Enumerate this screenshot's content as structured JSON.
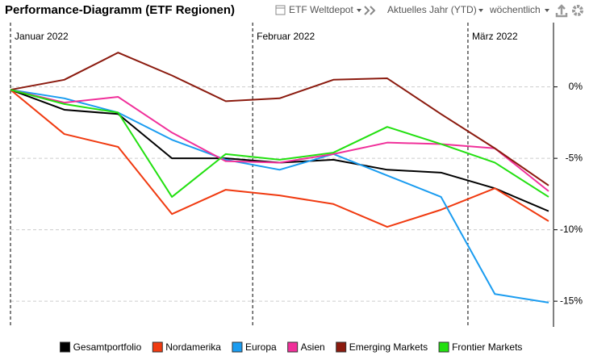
{
  "toolbar": {
    "depot": "ETF Weltdepot",
    "period": "Aktuelles Jahr (YTD)",
    "interval": "wöchentlich"
  },
  "chart_data": {
    "type": "line",
    "title": "Performance-Diagramm (ETF Regionen)",
    "categories": [
      "Januar 2022",
      null,
      null,
      null,
      null,
      "Februar 2022",
      null,
      null,
      null,
      "März 2022",
      null
    ],
    "series": [
      {
        "name": "Gesamtportfolio",
        "color": "#000000",
        "values": [
          -0.2,
          -1.6,
          -1.9,
          -5.0,
          -5.0,
          -5.3,
          -5.1,
          -5.8,
          -6.0,
          -7.1,
          -8.7
        ]
      },
      {
        "name": "Nordamerika",
        "color": "#f03a10",
        "values": [
          -0.2,
          -3.3,
          -4.2,
          -8.9,
          -7.2,
          -7.6,
          -8.2,
          -9.8,
          -8.6,
          -7.1,
          -9.4
        ]
      },
      {
        "name": "Europa",
        "color": "#1a9cf0",
        "values": [
          -0.2,
          -0.8,
          -1.8,
          -3.7,
          -5.1,
          -5.8,
          -4.7,
          -6.2,
          -7.7,
          -14.5,
          -15.1
        ]
      },
      {
        "name": "Asien",
        "color": "#f0309a",
        "values": [
          -0.2,
          -1.1,
          -0.7,
          -3.2,
          -5.2,
          -5.3,
          -4.7,
          -3.9,
          -4.0,
          -4.3,
          -7.3
        ]
      },
      {
        "name": "Emerging Markets",
        "color": "#8b1a0e",
        "values": [
          -0.2,
          0.5,
          2.4,
          0.8,
          -1.0,
          -0.8,
          0.5,
          0.6,
          -1.9,
          -4.3,
          -6.9
        ]
      },
      {
        "name": "Frontier Markets",
        "color": "#22e010",
        "values": [
          -0.2,
          -1.2,
          -1.8,
          -7.7,
          -4.7,
          -5.1,
          -4.6,
          -2.8,
          -4.0,
          -5.3,
          -7.7
        ]
      }
    ],
    "ylim": [
      -16.8,
      4.5
    ],
    "yticks": [
      {
        "value": 0,
        "label": "0%"
      },
      {
        "value": -5,
        "label": "-5%"
      },
      {
        "value": -10,
        "label": "-10%"
      },
      {
        "value": -15,
        "label": "-15%"
      }
    ],
    "grid": true
  }
}
